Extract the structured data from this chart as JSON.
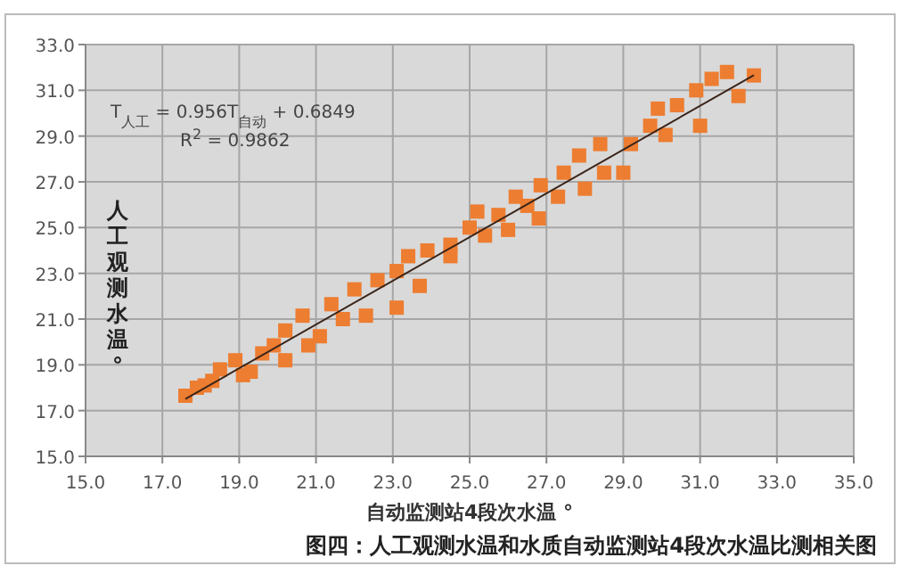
{
  "chart_data": {
    "type": "scatter",
    "title": "图四：人工观测水温和水质自动监测站4段次水温比测相关图",
    "xlabel": "自动监测站4段次水温 °",
    "ylabel": "人工观测水温°",
    "annotations": [
      "T$_{人工}$ = 0.956T$_{自动}$ + 0.6849",
      "R$^{2}$ = 0.9862"
    ],
    "xlim": [
      15,
      35
    ],
    "xticks": [
      {
        "value": 15,
        "label": "15.0"
      },
      {
        "value": 17,
        "label": "17.0"
      },
      {
        "value": 19,
        "label": "19.0"
      },
      {
        "value": 21,
        "label": "21.0"
      },
      {
        "value": 23,
        "label": "23.0"
      },
      {
        "value": 25,
        "label": "25.0"
      },
      {
        "value": 27,
        "label": "27.0"
      },
      {
        "value": 29,
        "label": "29.0"
      },
      {
        "value": 31,
        "label": "31.0"
      },
      {
        "value": 33,
        "label": "33.0"
      },
      {
        "value": 35,
        "label": "35.0"
      }
    ],
    "ylim": [
      15,
      33
    ],
    "yticks": [
      {
        "value": 15,
        "label": "15.0"
      },
      {
        "value": 17,
        "label": "17.0"
      },
      {
        "value": 19,
        "label": "19.0"
      },
      {
        "value": 21,
        "label": "21.0"
      },
      {
        "value": 23,
        "label": "23.0"
      },
      {
        "value": 25,
        "label": "25.0"
      },
      {
        "value": 27,
        "label": "27.0"
      },
      {
        "value": 29,
        "label": "29.0"
      },
      {
        "value": 31,
        "label": "31.0"
      },
      {
        "value": 33,
        "label": "33.0"
      }
    ],
    "grid": true,
    "series": [
      {
        "color": "#ed7d31",
        "marker": "square",
        "x": [
          17.6,
          17.9,
          18.1,
          18.3,
          18.5,
          18.9,
          19.1,
          19.3,
          19.6,
          19.9,
          20.2,
          20.2,
          20.65,
          20.8,
          21.1,
          21.4,
          21.7,
          22.0,
          22.3,
          22.6,
          23.1,
          23.1,
          23.4,
          23.7,
          23.9,
          24.5,
          24.5,
          25.0,
          25.2,
          25.4,
          25.75,
          26.0,
          26.2,
          26.5,
          26.8,
          26.85,
          27.3,
          27.45,
          27.85,
          28.0,
          28.4,
          28.5,
          29.0,
          29.2,
          29.7,
          29.9,
          30.1,
          30.4,
          30.9,
          31.0,
          31.3,
          31.7,
          32.0,
          32.4
        ],
        "values": [
          17.65,
          18.0,
          18.1,
          18.3,
          18.8,
          19.2,
          18.55,
          18.7,
          19.5,
          19.85,
          19.2,
          20.5,
          21.15,
          19.85,
          20.25,
          21.65,
          21.0,
          22.3,
          21.15,
          22.7,
          21.5,
          23.1,
          23.75,
          22.45,
          24.0,
          24.25,
          23.75,
          25.0,
          25.7,
          24.65,
          25.55,
          24.9,
          26.35,
          25.95,
          25.4,
          26.85,
          26.35,
          27.4,
          28.15,
          26.7,
          28.65,
          27.4,
          27.4,
          28.65,
          29.45,
          30.2,
          29.05,
          30.35,
          31.0,
          29.45,
          31.5,
          31.8,
          30.75,
          31.65
        ]
      },
      {
        "type": "line",
        "color": "#3a2418",
        "marker": "none",
        "x": [
          17.6,
          32.4
        ],
        "values": [
          17.51,
          31.66
        ]
      }
    ]
  }
}
